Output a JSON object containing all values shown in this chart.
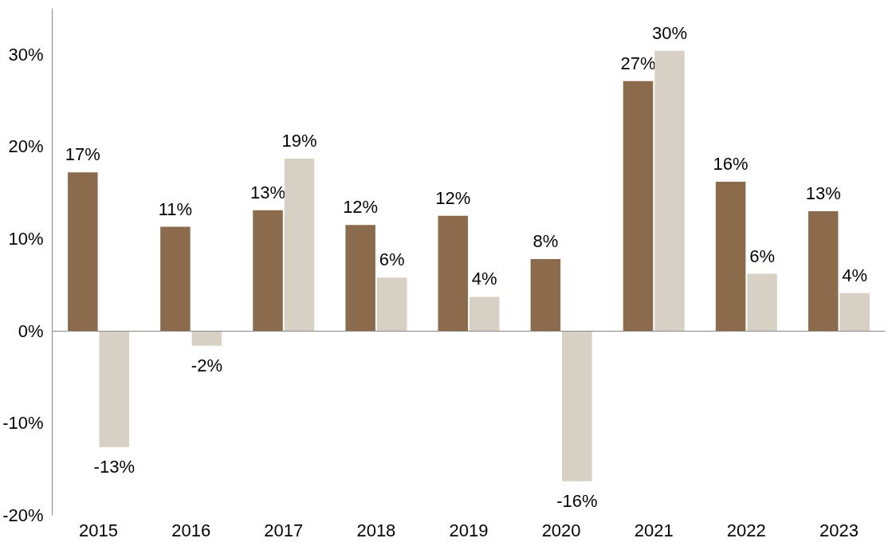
{
  "chart_data": {
    "type": "bar",
    "categories": [
      "2015",
      "2016",
      "2017",
      "2018",
      "2019",
      "2020",
      "2021",
      "2022",
      "2023"
    ],
    "series": [
      {
        "color": "#8b6b4c",
        "values": [
          17.2,
          11.3,
          13.1,
          11.5,
          12.5,
          7.8,
          27.1,
          16.2,
          13.0
        ],
        "value_labels": [
          "17%",
          "11%",
          "13%",
          "12%",
          "12%",
          "8%",
          "27%",
          "16%",
          "13%"
        ]
      },
      {
        "color": "#d7d0c4",
        "values": [
          -12.6,
          -1.6,
          18.7,
          5.8,
          3.7,
          -16.3,
          30.4,
          6.2,
          4.1
        ],
        "value_labels": [
          "-13%",
          "-2%",
          "19%",
          "6%",
          "4%",
          "-16%",
          "30%",
          "6%",
          "4%"
        ]
      }
    ],
    "ylim": [
      -20,
      35
    ],
    "yticks": [
      {
        "value": -20,
        "label": "-20%"
      },
      {
        "value": -10,
        "label": "-10%"
      },
      {
        "value": 0,
        "label": "0%"
      },
      {
        "value": 10,
        "label": "10%"
      },
      {
        "value": 20,
        "label": "20%"
      },
      {
        "value": 30,
        "label": "30%"
      }
    ]
  }
}
